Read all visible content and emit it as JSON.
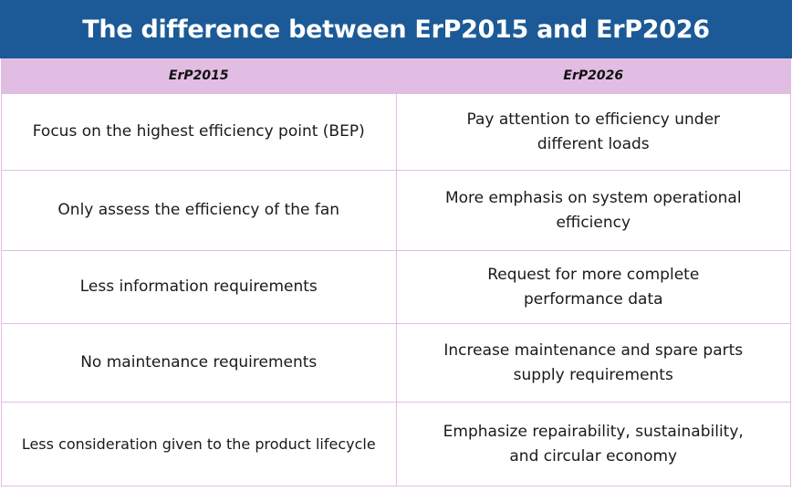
{
  "title": "The difference between ErP2015 and ErP2026",
  "columns": [
    "ErP2015",
    "ErP2026"
  ],
  "rows": [
    {
      "erp2015": "Focus on the highest efficiency point (BEP)",
      "erp2026_line1": "Pay attention to efficiency under",
      "erp2026_line2": "different loads"
    },
    {
      "erp2015": "Only assess the efficiency of the fan",
      "erp2026_line1": "More emphasis on system operational",
      "erp2026_line2": "efficiency"
    },
    {
      "erp2015": "Less information requirements",
      "erp2026_line1": "Request for more complete",
      "erp2026_line2": "performance data"
    },
    {
      "erp2015": "No maintenance requirements",
      "erp2026_line1": "Increase maintenance and spare parts",
      "erp2026_line2": "supply requirements"
    },
    {
      "erp2015": "Less consideration given to the product lifecycle",
      "erp2026_line1": "Emphasize repairability, sustainability,",
      "erp2026_line2": "and circular economy"
    }
  ],
  "colors": {
    "header_bg": "#1b5a96",
    "column_header_bg": "#e2bde3",
    "border": "#e2bde3"
  }
}
